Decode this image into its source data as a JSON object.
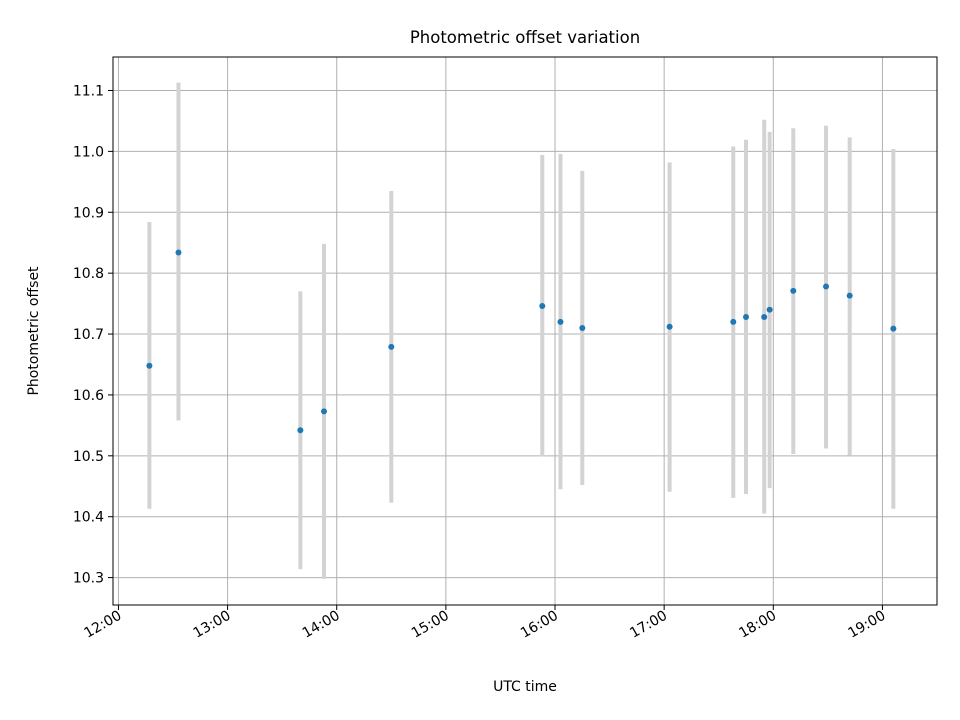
{
  "chart_data": {
    "type": "scatter",
    "title": "Photometric offset variation",
    "xlabel": "UTC time",
    "ylabel": "Photometric offset",
    "xlim": [
      "11:57",
      "19:30"
    ],
    "ylim": [
      10.255,
      11.155
    ],
    "x_ticks": [
      "12:00",
      "13:00",
      "14:00",
      "15:00",
      "16:00",
      "17:00",
      "18:00",
      "19:00"
    ],
    "y_ticks": [
      10.3,
      10.4,
      10.5,
      10.6,
      10.7,
      10.8,
      10.9,
      11.0,
      11.1
    ],
    "grid": true,
    "colors": {
      "point": "#1f77b4",
      "errorbar": "#d3d3d3",
      "grid": "#b0b0b0"
    },
    "points": [
      {
        "x": "12:17",
        "y": 10.648,
        "ymin": 10.413,
        "ymax": 10.884
      },
      {
        "x": "12:33",
        "y": 10.834,
        "ymin": 10.558,
        "ymax": 11.113
      },
      {
        "x": "13:40",
        "y": 10.542,
        "ymin": 10.314,
        "ymax": 10.77
      },
      {
        "x": "13:53",
        "y": 10.573,
        "ymin": 10.298,
        "ymax": 10.848
      },
      {
        "x": "14:30",
        "y": 10.679,
        "ymin": 10.423,
        "ymax": 10.935
      },
      {
        "x": "15:53",
        "y": 10.746,
        "ymin": 10.499,
        "ymax": 10.994
      },
      {
        "x": "16:03",
        "y": 10.72,
        "ymin": 10.445,
        "ymax": 10.996
      },
      {
        "x": "16:15",
        "y": 10.71,
        "ymin": 10.452,
        "ymax": 10.968
      },
      {
        "x": "17:03",
        "y": 10.712,
        "ymin": 10.441,
        "ymax": 10.982
      },
      {
        "x": "17:38",
        "y": 10.72,
        "ymin": 10.431,
        "ymax": 11.008
      },
      {
        "x": "17:45",
        "y": 10.728,
        "ymin": 10.437,
        "ymax": 11.019
      },
      {
        "x": "17:55",
        "y": 10.728,
        "ymin": 10.405,
        "ymax": 11.052
      },
      {
        "x": "17:58",
        "y": 10.74,
        "ymin": 10.447,
        "ymax": 11.032
      },
      {
        "x": "18:11",
        "y": 10.771,
        "ymin": 10.503,
        "ymax": 11.038
      },
      {
        "x": "18:29",
        "y": 10.778,
        "ymin": 10.512,
        "ymax": 11.042
      },
      {
        "x": "18:42",
        "y": 10.763,
        "ymin": 10.501,
        "ymax": 11.023
      },
      {
        "x": "19:06",
        "y": 10.709,
        "ymin": 10.413,
        "ymax": 11.004
      }
    ]
  }
}
